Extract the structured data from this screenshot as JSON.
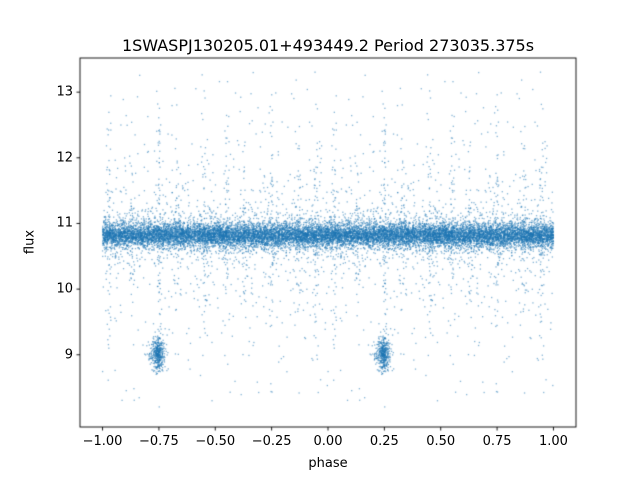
{
  "chart_data": {
    "type": "scatter",
    "title": "1SWASPJ130205.01+493449.2 Period 273035.375s",
    "xlabel": "phase",
    "ylabel": "flux",
    "xlim": [
      -1.1,
      1.1
    ],
    "ylim": [
      7.9,
      13.52
    ],
    "xticks": [
      -1.0,
      -0.75,
      -0.5,
      -0.25,
      0.0,
      0.25,
      0.5,
      0.75,
      1.0
    ],
    "xtick_labels": [
      "−1.00",
      "−0.75",
      "−0.50",
      "−0.25",
      "0.00",
      "0.25",
      "0.50",
      "0.75",
      "1.00"
    ],
    "yticks": [
      9,
      10,
      11,
      12,
      13
    ],
    "ytick_labels": [
      "9",
      "10",
      "11",
      "12",
      "13"
    ],
    "grid": false,
    "legend": "none",
    "marker_color": "#1f77b4",
    "marker_alpha": 0.55,
    "marker_size_px": 1.3,
    "spine_color": "#000000",
    "seed": 42,
    "phase_duplication": "each folded phase p in [0,1) is plotted at p and p-1",
    "flux_clip": [
      8.2,
      13.35
    ],
    "components": {
      "main_band": {
        "n": 6500,
        "flux_mean": 10.82,
        "flux_std": 0.09
      },
      "band_fuzz": {
        "n": 1200,
        "flux_mean": 10.82,
        "flux_std": 0.22
      },
      "sparse_outliers": {
        "n": 450,
        "flux_mean": 10.8,
        "flux_std": 0.75
      },
      "sparse_low": {
        "n": 60,
        "flux_range": [
          8.3,
          9.9
        ]
      },
      "sparse_high": {
        "n": 45,
        "flux_range": [
          11.7,
          13.3
        ]
      },
      "streak_width": 0.007,
      "streak_flux_center": 10.85,
      "streaks": [
        {
          "phase": 0.03,
          "n": 55,
          "spread": 0.9
        },
        {
          "phase": 0.13,
          "n": 40,
          "spread": 0.7
        },
        {
          "phase": 0.25,
          "n": 70,
          "spread": 1.1
        },
        {
          "phase": 0.33,
          "n": 45,
          "spread": 0.8
        },
        {
          "phase": 0.45,
          "n": 55,
          "spread": 1.0
        },
        {
          "phase": 0.55,
          "n": 45,
          "spread": 0.85
        },
        {
          "phase": 0.63,
          "n": 40,
          "spread": 0.7
        },
        {
          "phase": 0.75,
          "n": 60,
          "spread": 1.05
        },
        {
          "phase": 0.87,
          "n": 45,
          "spread": 0.8
        },
        {
          "phase": 0.95,
          "n": 55,
          "spread": 0.95
        }
      ],
      "eclipse": {
        "phase": 0.245,
        "width": 0.016,
        "n": 430,
        "flux_mean": 9.03,
        "flux_std": 0.13,
        "flux_clip": [
          8.66,
          9.42
        ]
      }
    }
  }
}
